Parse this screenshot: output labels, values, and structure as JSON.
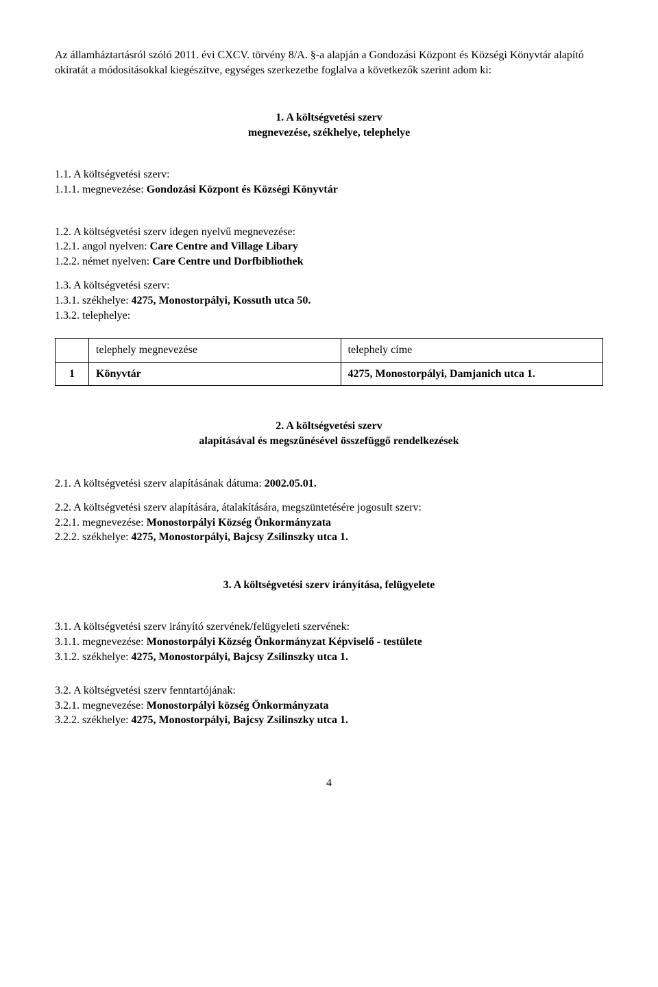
{
  "intro": {
    "line1_prefix": "Az államháztartásról szóló 2011. évi CXCV. törvény 8/A. ",
    "line1_mid": "§-a alapján a Gondozási Központ és Községi Könyvtár",
    "line2": " alapító okiratát a módosításokkal kiegészítve, egységes szerkezetbe foglalva a következők szerint adom ki:"
  },
  "section1": {
    "title_line1": "1. A költségvetési szerv",
    "title_line2": "megnevezése, székhelye, telephelye",
    "i11_label": "1.1. A költségvetési szerv:",
    "i111_prefix": "1.1.1. megnevezése: ",
    "i111_value": "Gondozási Központ és Községi Könyvtár",
    "i12_label": "1.2. A költségvetési szerv idegen nyelvű megnevezése:",
    "i121_prefix": "1.2.1. angol nyelven: ",
    "i121_value": "Care Centre and Village Libary",
    "i122_prefix": "1.2.2. német nyelven: ",
    "i122_value": "Care Centre und Dorfbibliothek",
    "i13_label": "1.3. A költségvetési szerv:",
    "i131_prefix": "1.3.1. székhelye: ",
    "i131_value": "4275, Monostorpályi, Kossuth utca 50.",
    "i132_label": "1.3.2. telephelye:",
    "table": {
      "header_name": "telephely megnevezése",
      "header_addr": "telephely címe",
      "row1_idx": "1",
      "row1_name": "Könyvtár",
      "row1_addr": "4275, Monostorpályi, Damjanich utca 1."
    }
  },
  "section2": {
    "title_line1": "2. A költségvetési szerv",
    "title_line2": "alapításával és megszűnésével összefüggő rendelkezések",
    "i21_prefix": "2.1. A költségvetési szerv alapításának dátuma: ",
    "i21_value": "2002.05.01.",
    "i22_label": "2.2. A költségvetési szerv alapítására, átalakítására, megszüntetésére jogosult szerv:",
    "i221_prefix": "2.2.1. megnevezése: ",
    "i221_value": "Monostorpályi Község Önkormányzata",
    "i222_prefix": "2.2.2. székhelye: ",
    "i222_value": "4275, Monostorpályi, Bajcsy Zsilinszky utca 1."
  },
  "section3": {
    "title": "3. A költségvetési szerv irányítása, felügyelete",
    "i31_label": "3.1. A költségvetési szerv irányító szervének/felügyeleti szervének:",
    "i311_prefix": "3.1.1. megnevezése: ",
    "i311_value": "Monostorpályi Község Önkormányzat Képviselő - testülete",
    "i312_prefix": "3.1.2. székhelye: ",
    "i312_value": "4275, Monostorpályi, Bajcsy Zsilinszky utca 1.",
    "i32_label": "3.2. A költségvetési szerv fenntartójának:",
    "i321_prefix": "3.2.1. megnevezése: ",
    "i321_value": "Monostorpályi község Önkormányzata",
    "i322_prefix": "3.2.2. székhelye: ",
    "i322_value": "4275, Monostorpályi, Bajcsy Zsilinszky utca 1."
  },
  "page_number": "4"
}
